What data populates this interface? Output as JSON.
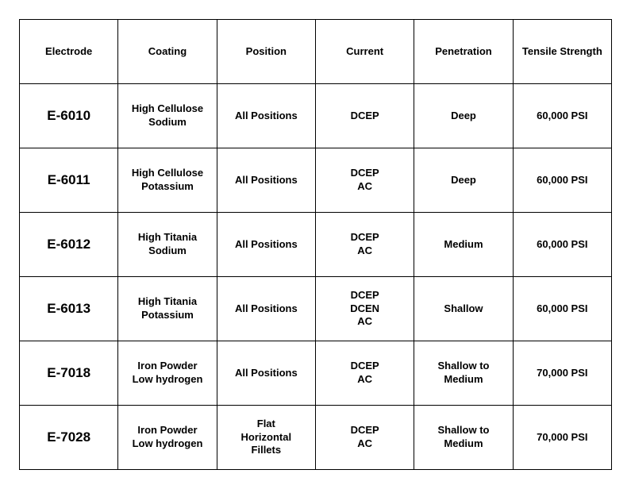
{
  "table": {
    "columns": [
      "Electrode",
      "Coating",
      "Position",
      "Current",
      "Penetration",
      "Tensile Strength"
    ],
    "rows": [
      {
        "electrode": "E-6010",
        "coating": [
          "High Cellulose",
          "Sodium"
        ],
        "position": [
          "All Positions"
        ],
        "current": [
          "DCEP"
        ],
        "penetration": [
          "Deep"
        ],
        "tensile": "60,000 PSI"
      },
      {
        "electrode": "E-6011",
        "coating": [
          "High Cellulose",
          "Potassium"
        ],
        "position": [
          "All Positions"
        ],
        "current": [
          "DCEP",
          "AC"
        ],
        "penetration": [
          "Deep"
        ],
        "tensile": "60,000 PSI"
      },
      {
        "electrode": "E-6012",
        "coating": [
          "High Titania",
          "Sodium"
        ],
        "position": [
          "All Positions"
        ],
        "current": [
          "DCEP",
          "AC"
        ],
        "penetration": [
          "Medium"
        ],
        "tensile": "60,000 PSI"
      },
      {
        "electrode": "E-6013",
        "coating": [
          "High Titania",
          "Potassium"
        ],
        "position": [
          "All Positions"
        ],
        "current": [
          "DCEP",
          "DCEN",
          "AC"
        ],
        "penetration": [
          "Shallow"
        ],
        "tensile": "60,000 PSI"
      },
      {
        "electrode": "E-7018",
        "coating": [
          "Iron Powder",
          "Low hydrogen"
        ],
        "position": [
          "All Positions"
        ],
        "current": [
          "DCEP",
          "AC"
        ],
        "penetration": [
          "Shallow to",
          "Medium"
        ],
        "tensile": "70,000 PSI"
      },
      {
        "electrode": "E-7028",
        "coating": [
          "Iron Powder",
          "Low hydrogen"
        ],
        "position": [
          "Flat",
          "Horizontal",
          "Fillets"
        ],
        "current": [
          "DCEP",
          "AC"
        ],
        "penetration": [
          "Shallow to",
          "Medium"
        ],
        "tensile": "70,000 PSI"
      }
    ],
    "border_color": "#000000",
    "background_color": "#ffffff",
    "header_fontsize": 13,
    "cell_fontsize": 13,
    "electrode_fontsize": 17
  }
}
